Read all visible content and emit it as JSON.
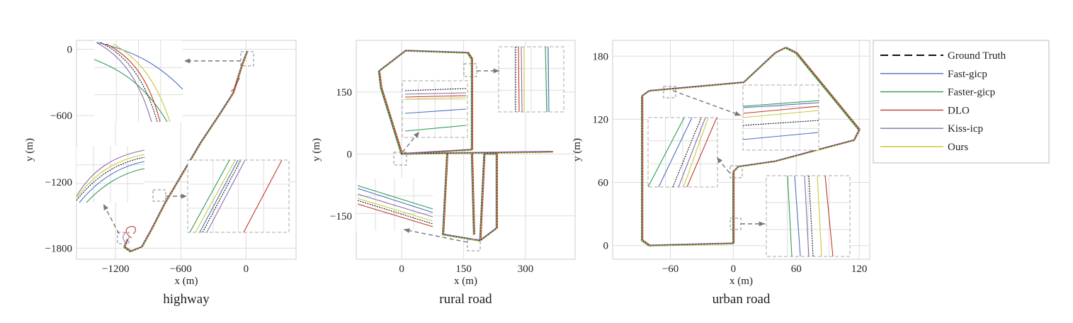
{
  "legend": {
    "items": [
      {
        "label": "Ground Truth",
        "color": "#111111",
        "dashed": true
      },
      {
        "label": "Fast-gicp",
        "color": "#4a6fbd",
        "dashed": false
      },
      {
        "label": "Faster-gicp",
        "color": "#2e9a55",
        "dashed": false
      },
      {
        "label": "DLO",
        "color": "#c0392b",
        "dashed": false
      },
      {
        "label": "Kiss-icp",
        "color": "#8a6aae",
        "dashed": false
      },
      {
        "label": "Ours",
        "color": "#c8c83a",
        "dashed": false
      }
    ]
  },
  "chart_data": [
    {
      "type": "line",
      "title": "highway",
      "xlabel": "x (m)",
      "ylabel": "y (m)",
      "xlim": [
        -1560,
        460
      ],
      "ylim": [
        -1900,
        80
      ],
      "xticks": [
        -1200,
        -600,
        0
      ],
      "yticks": [
        0,
        -600,
        -1200,
        -1800
      ],
      "grid": true,
      "trajectory": [
        [
          10,
          -20
        ],
        [
          -40,
          -150
        ],
        [
          -120,
          -400
        ],
        [
          -250,
          -600
        ],
        [
          -420,
          -850
        ],
        [
          -600,
          -1150
        ],
        [
          -750,
          -1400
        ],
        [
          -870,
          -1630
        ],
        [
          -960,
          -1790
        ],
        [
          -1060,
          -1830
        ],
        [
          -1120,
          -1790
        ],
        [
          -1090,
          -1720
        ]
      ]
    },
    {
      "type": "line",
      "title": "rural road",
      "xlabel": "x (m)",
      "ylabel": "y (m)",
      "xlim": [
        -110,
        420
      ],
      "ylim": [
        -255,
        275
      ],
      "xticks": [
        0,
        150,
        300
      ],
      "yticks": [
        150,
        0,
        -150
      ],
      "grid": true,
      "loops": [
        [
          [
            0,
            0
          ],
          [
            -50,
            160
          ],
          [
            -55,
            200
          ],
          [
            10,
            250
          ],
          [
            160,
            245
          ],
          [
            170,
            230
          ],
          [
            170,
            10
          ],
          [
            0,
            0
          ]
        ],
        [
          [
            0,
            0
          ],
          [
            365,
            5
          ]
        ],
        [
          [
            110,
            0
          ],
          [
            100,
            -195
          ],
          [
            190,
            -210
          ],
          [
            200,
            0
          ]
        ],
        [
          [
            170,
            0
          ],
          [
            175,
            -195
          ]
        ],
        [
          [
            200,
            0
          ],
          [
            230,
            0
          ],
          [
            230,
            -180
          ],
          [
            190,
            -210
          ]
        ]
      ]
    },
    {
      "type": "line",
      "title": "urban road",
      "xlabel": "x (m)",
      "ylabel": "y (m)",
      "xlim": [
        -115,
        130
      ],
      "ylim": [
        -13,
        195
      ],
      "xticks": [
        -60,
        0,
        60,
        120
      ],
      "yticks": [
        180,
        120,
        60,
        0
      ],
      "grid": true,
      "loops": [
        [
          [
            0,
            2
          ],
          [
            -80,
            0
          ],
          [
            -87,
            5
          ],
          [
            -87,
            142
          ],
          [
            -80,
            147
          ],
          [
            10,
            155
          ],
          [
            40,
            183
          ],
          [
            50,
            188
          ],
          [
            60,
            183
          ],
          [
            120,
            110
          ],
          [
            115,
            100
          ],
          [
            40,
            80
          ],
          [
            5,
            75
          ],
          [
            0,
            70
          ],
          [
            0,
            2
          ]
        ]
      ]
    }
  ]
}
